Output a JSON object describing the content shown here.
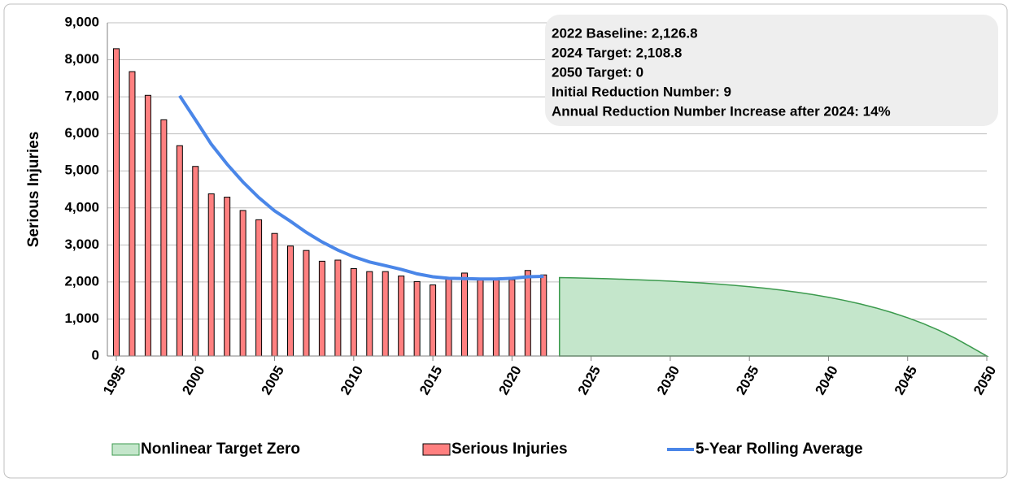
{
  "chart_data": {
    "type": "combo",
    "y_label": "Serious Injuries",
    "xlim": [
      1995,
      2050
    ],
    "xticks": [
      1995,
      2000,
      2005,
      2010,
      2015,
      2020,
      2025,
      2030,
      2035,
      2040,
      2045,
      2050
    ],
    "ylim": [
      0,
      9000
    ],
    "yticks": [
      0,
      {
        "value": 1000,
        "label": "1,000"
      },
      {
        "value": 2000,
        "label": "2,000"
      },
      {
        "value": 3000,
        "label": "3,000"
      },
      {
        "value": 4000,
        "label": "4,000"
      },
      {
        "value": 5000,
        "label": "5,000"
      },
      {
        "value": 6000,
        "label": "6,000"
      },
      {
        "value": 7000,
        "label": "7,000"
      },
      {
        "value": 8000,
        "label": "8,000"
      },
      {
        "value": 9000,
        "label": "9,000"
      }
    ],
    "grid": true,
    "annotations": [
      "2022 Baseline: 2,126.8",
      "2024 Target: 2,108.8",
      "2050 Target: 0",
      "Initial Reduction Number: 9",
      "Annual Reduction Number Increase after 2024: 14%"
    ],
    "series": [
      {
        "name": "Nonlinear Target Zero",
        "kind": "area",
        "color": "#c4e6cb",
        "edge": "#3b9a4d",
        "x": [
          2023,
          2024,
          2025,
          2026,
          2027,
          2028,
          2029,
          2030,
          2031,
          2032,
          2033,
          2034,
          2035,
          2036,
          2037,
          2038,
          2039,
          2040,
          2041,
          2042,
          2043,
          2044,
          2045,
          2046,
          2047,
          2048,
          2049,
          2050
        ],
        "values": [
          2117.8,
          2108.8,
          2098.5,
          2086.8,
          2073.5,
          2058.3,
          2041.0,
          2021.2,
          1998.7,
          1973.0,
          1943.8,
          1910.4,
          1872.4,
          1829.0,
          1779.6,
          1723.2,
          1659.0,
          1585.8,
          1502.3,
          1407.1,
          1298.6,
          1174.9,
          1033.9,
          873.2,
          690.0,
          481.1,
          243.0,
          0
        ]
      },
      {
        "name": "Serious Injuries",
        "kind": "bar",
        "color": "#ff8080",
        "edge": "#000000",
        "x": [
          1995,
          1996,
          1997,
          1998,
          1999,
          2000,
          2001,
          2002,
          2003,
          2004,
          2005,
          2006,
          2007,
          2008,
          2009,
          2010,
          2011,
          2012,
          2013,
          2014,
          2015,
          2016,
          2017,
          2018,
          2019,
          2020,
          2021,
          2022
        ],
        "values": [
          8300,
          7680,
          7040,
          6380,
          5680,
          5120,
          4380,
          4290,
          3930,
          3680,
          3310,
          2970,
          2850,
          2560,
          2590,
          2360,
          2280,
          2280,
          2160,
          2010,
          1920,
          2080,
          2240,
          2100,
          2080,
          2060,
          2310,
          2190
        ]
      },
      {
        "name": "5-Year Rolling Average",
        "kind": "line",
        "color": "#4a86e8",
        "x": [
          1999,
          2000,
          2001,
          2002,
          2003,
          2004,
          2005,
          2006,
          2007,
          2008,
          2009,
          2010,
          2011,
          2012,
          2013,
          2014,
          2015,
          2016,
          2017,
          2018,
          2019,
          2020,
          2021,
          2022
        ],
        "values": [
          7030,
          6380,
          5720,
          5180,
          4700,
          4280,
          3920,
          3640,
          3340,
          3080,
          2860,
          2680,
          2540,
          2440,
          2340,
          2220,
          2140,
          2100,
          2090,
          2080,
          2080,
          2100,
          2140,
          2150
        ]
      }
    ]
  }
}
